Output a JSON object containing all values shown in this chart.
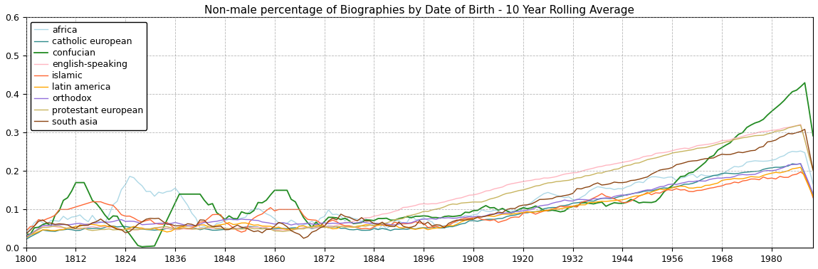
{
  "title": "Non-male percentage of Biographies by Date of Birth - 10 Year Rolling Average",
  "xlim": [
    1800,
    1990
  ],
  "ylim": [
    0.0,
    0.6
  ],
  "xticks": [
    1800,
    1812,
    1824,
    1836,
    1848,
    1860,
    1872,
    1884,
    1896,
    1908,
    1920,
    1932,
    1944,
    1956,
    1968,
    1980
  ],
  "yticks": [
    0.0,
    0.1,
    0.2,
    0.3,
    0.4,
    0.5,
    0.6
  ],
  "series": {
    "africa": {
      "color": "#add8e6",
      "lw": 1.0
    },
    "catholic european": {
      "color": "#2e8b8b",
      "lw": 1.0
    },
    "confucian": {
      "color": "#228b22",
      "lw": 1.3
    },
    "english-speaking": {
      "color": "#ffb6c1",
      "lw": 1.0
    },
    "islamic": {
      "color": "#ff6633",
      "lw": 1.0
    },
    "latin america": {
      "color": "#ffa500",
      "lw": 1.0
    },
    "orthodox": {
      "color": "#9370db",
      "lw": 1.0
    },
    "protestant european": {
      "color": "#c8b560",
      "lw": 1.0
    },
    "south asia": {
      "color": "#8b4513",
      "lw": 1.0
    }
  },
  "background": "#ffffff",
  "grid_color": "#999999",
  "legend_fontsize": 9,
  "title_fontsize": 11
}
